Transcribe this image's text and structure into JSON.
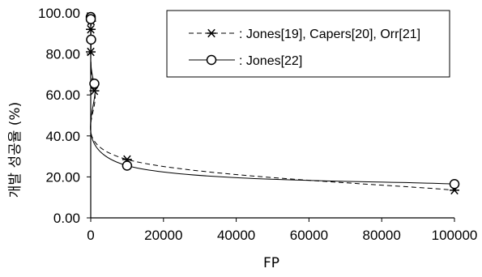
{
  "chart_data": {
    "type": "line",
    "title": "",
    "xlabel": "FP",
    "ylabel": "개발 성공율 (%)",
    "xlim": [
      0,
      100000
    ],
    "ylim": [
      0,
      100
    ],
    "x_ticks": [
      "0",
      "20000",
      "40000",
      "60000",
      "80000",
      "100000"
    ],
    "y_ticks": [
      "0.00",
      "20.00",
      "40.00",
      "60.00",
      "80.00",
      "100.00"
    ],
    "grid": false,
    "legend_position": "top-right",
    "series": [
      {
        "name": "Jones[19], Capers[20], Orr[21]",
        "marker": "asterisk",
        "line": "dashed",
        "points": [
          [
            1,
            81
          ],
          [
            10,
            92
          ],
          [
            100,
            96
          ],
          [
            1000,
            62
          ],
          [
            10000,
            28.5
          ],
          [
            100000,
            13.5
          ]
        ]
      },
      {
        "name": "Jones[22]",
        "marker": "circle",
        "line": "solid",
        "points": [
          [
            1,
            98
          ],
          [
            10,
            97
          ],
          [
            100,
            87
          ],
          [
            1000,
            65.5
          ],
          [
            10000,
            25.5
          ],
          [
            100000,
            16.5
          ]
        ]
      }
    ]
  }
}
